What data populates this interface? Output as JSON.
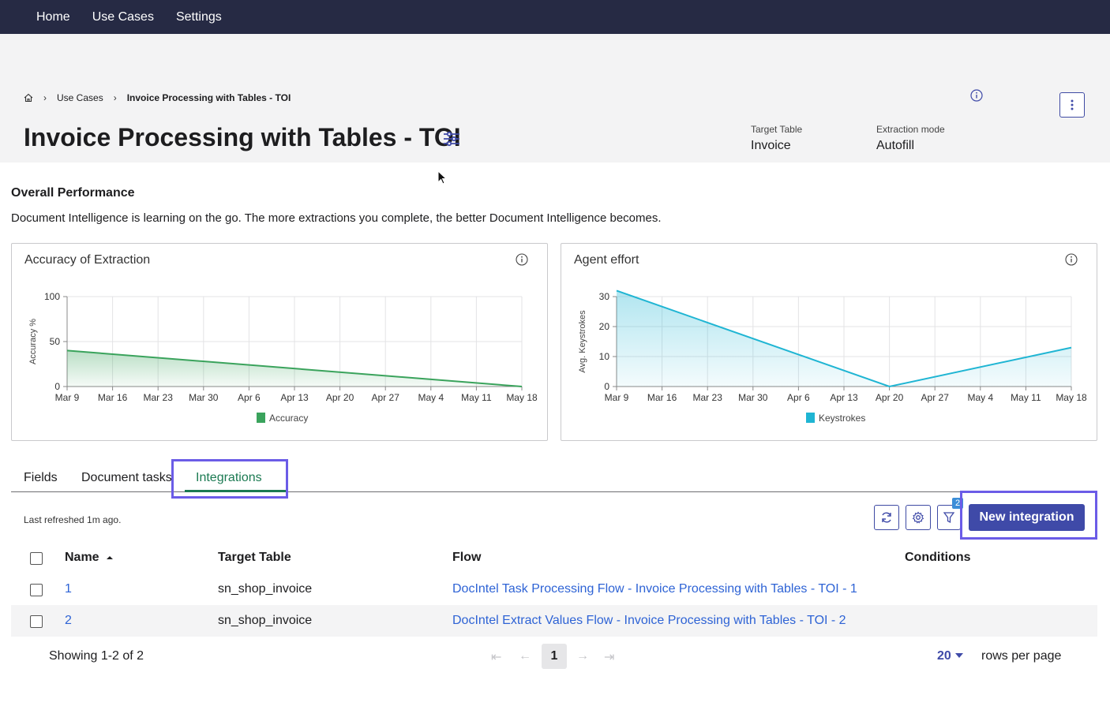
{
  "nav": {
    "items": [
      "Home",
      "Use Cases",
      "Settings"
    ]
  },
  "breadcrumb": {
    "home_icon": "home-icon",
    "items": [
      "Use Cases",
      "Invoice Processing with Tables - TOI"
    ]
  },
  "header": {
    "title": "Invoice Processing with Tables - TOI",
    "target_table_label": "Target Table",
    "target_table_value": "Invoice",
    "extraction_mode_label": "Extraction mode",
    "extraction_mode_value": "Autofill"
  },
  "overview": {
    "title": "Overall Performance",
    "description": "Document Intelligence is learning on the go. The more extractions you complete, the better Document Intelligence becomes."
  },
  "chart_data": [
    {
      "type": "area",
      "title": "Accuracy of Extraction",
      "ylabel": "Accuracy %",
      "xlabel": "",
      "categories": [
        "Mar 9",
        "Mar 16",
        "Mar 23",
        "Mar 30",
        "Apr 6",
        "Apr 13",
        "Apr 20",
        "Apr 27",
        "May 4",
        "May 11",
        "May 18"
      ],
      "yticks": [
        0,
        50,
        100
      ],
      "ylim": [
        0,
        100
      ],
      "series": [
        {
          "name": "Accuracy",
          "points": [
            [
              "Mar 9",
              40
            ],
            [
              "May 18",
              0
            ]
          ]
        }
      ],
      "color": "#3aa35c",
      "grid": true,
      "legend": "bottom"
    },
    {
      "type": "area",
      "title": "Agent effort",
      "ylabel": "Avg. Keystrokes",
      "xlabel": "",
      "categories": [
        "Mar 9",
        "Mar 16",
        "Mar 23",
        "Mar 30",
        "Apr 6",
        "Apr 13",
        "Apr 20",
        "Apr 27",
        "May 4",
        "May 11",
        "May 18"
      ],
      "yticks": [
        0,
        10,
        20,
        30
      ],
      "ylim": [
        0,
        30
      ],
      "series": [
        {
          "name": "Keystrokes",
          "points": [
            [
              "Mar 9",
              32
            ],
            [
              "Apr 20",
              0
            ],
            [
              "May 18",
              13
            ]
          ]
        }
      ],
      "color": "#1fb5d3",
      "grid": true,
      "legend": "bottom"
    }
  ],
  "tabs": [
    {
      "label": "Fields"
    },
    {
      "label": "Document tasks"
    },
    {
      "label": "Integrations"
    }
  ],
  "toolbar": {
    "last_refreshed": "Last refreshed 1m ago.",
    "filter_count": "2",
    "new_integration_label": "New integration"
  },
  "table": {
    "columns": [
      "Name",
      "Target Table",
      "Flow",
      "Conditions"
    ],
    "rows": [
      {
        "name": "1",
        "target_table": "sn_shop_invoice",
        "flow": "DocIntel Task Processing Flow - Invoice Processing with Tables - TOI - 1",
        "conditions": ""
      },
      {
        "name": "2",
        "target_table": "sn_shop_invoice",
        "flow": "DocIntel Extract Values Flow - Invoice Processing with Tables - TOI - 2",
        "conditions": ""
      }
    ]
  },
  "pagination": {
    "showing": "Showing 1-2 of 2",
    "current_page": "1",
    "rows_per_page_value": "20",
    "rows_per_page_label": "rows per page"
  }
}
